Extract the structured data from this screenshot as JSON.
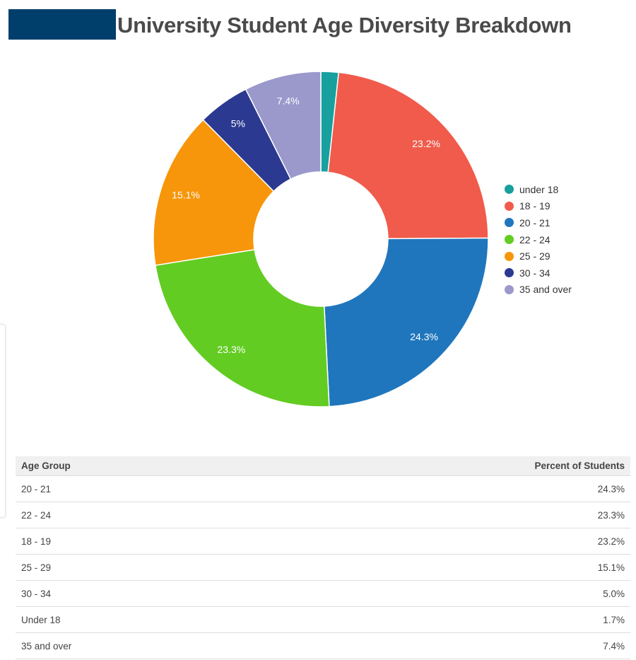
{
  "chart_data": {
    "type": "pie",
    "title": "University Student Age Diversity Breakdown",
    "donut": true,
    "categories": [
      "under 18",
      "18 - 19",
      "20 - 21",
      "22 - 24",
      "25 - 29",
      "30 - 34",
      "35 and over"
    ],
    "values": [
      1.7,
      23.2,
      24.3,
      23.3,
      15.1,
      5,
      7.4
    ],
    "data_labels": [
      "",
      "23.2%",
      "24.3%",
      "23.3%",
      "15.1%",
      "5%",
      "7.4%"
    ],
    "colors": [
      "#17a09e",
      "#f05b4c",
      "#1f76bd",
      "#62cc22",
      "#f7960a",
      "#2b3990",
      "#9b98cc"
    ],
    "legend_position": "right"
  },
  "table": {
    "headers": [
      "Age Group",
      "Percent of Students"
    ],
    "rows": [
      [
        "20 - 21",
        "24.3%"
      ],
      [
        "22 - 24",
        "23.3%"
      ],
      [
        "18 - 19",
        "23.2%"
      ],
      [
        "25 - 29",
        "15.1%"
      ],
      [
        "30 - 34",
        "5.0%"
      ],
      [
        "Under 18",
        "1.7%"
      ],
      [
        "35 and over",
        "7.4%"
      ]
    ]
  }
}
